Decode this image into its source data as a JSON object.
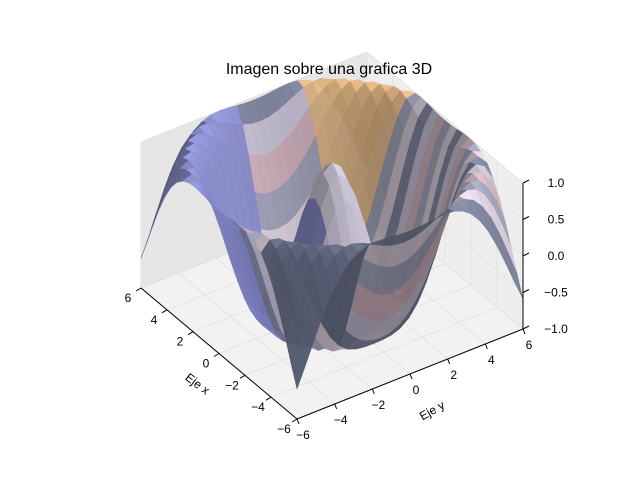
{
  "chart_data": {
    "type": "surface3d",
    "title": "Imagen sobre una grafica 3D",
    "xlabel": "Eje x",
    "ylabel": "Eje y",
    "zlabel": "",
    "xlim": [
      -6,
      6
    ],
    "ylim": [
      -6,
      6
    ],
    "zlim": [
      -1.0,
      1.0
    ],
    "xticks": [
      "−6",
      "−4",
      "−2",
      "0",
      "2",
      "4",
      "6"
    ],
    "yticks": [
      "−6",
      "−4",
      "−2",
      "0",
      "2",
      "4",
      "6"
    ],
    "zticks": [
      "−1.0",
      "−0.5",
      "0.0",
      "0.5",
      "1.0"
    ],
    "grid": true,
    "surface": {
      "function": "z = cos(sqrt(x^2 + y^2))",
      "x_range": [
        -6,
        6
      ],
      "y_range": [
        -6,
        6
      ],
      "texture": "image mapped onto surface (lavender, grey, blue, orange tones)"
    },
    "colors": {
      "pane_back": "#eeeeee",
      "pane_side": "#e6e6e6",
      "pane_floor": "#f2f2f2",
      "grid": "#e3e3e3",
      "surface_palette": [
        "#6c7490",
        "#a7a9c7",
        "#d8d2e6",
        "#e8c7c8",
        "#f6c68c",
        "#8a8fd8"
      ]
    }
  }
}
